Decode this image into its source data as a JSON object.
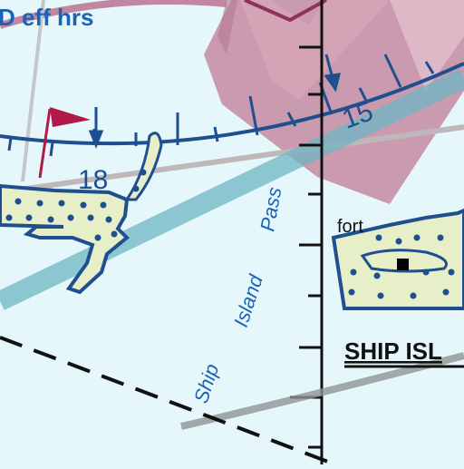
{
  "map": {
    "header_fragment": "D eff hrs",
    "compass_labels": [
      "15",
      "18"
    ],
    "water_label_words": [
      "Ship",
      "Island",
      "Pass"
    ],
    "feature_label": "fort",
    "island_label": "SHIP ISL",
    "colors": {
      "water": "#e6f7fb",
      "airspace_magenta": "#b86a8a",
      "airspace_fill": "#c9899f",
      "compass_blue": "#1f4f8f",
      "text_blue": "#1a63b5",
      "island_fill": "#e6efc8",
      "route_teal": "#6fb6c4",
      "ship_channel_gray": "#8f9396",
      "pennant_red": "#b01a48"
    },
    "icons": [
      "pennant-flag-icon",
      "pennant-flag-icon",
      "fort-square-icon",
      "isogonic-arrow-icon"
    ]
  }
}
